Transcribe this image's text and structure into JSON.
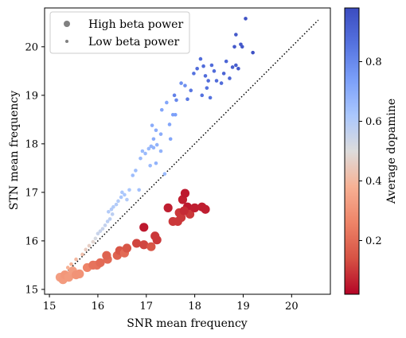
{
  "chart_data": {
    "type": "scatter",
    "xlabel": "SNR mean frequency",
    "ylabel": "STN mean frequency",
    "colorbar_label": "Average dopamine",
    "xlim": [
      14.9,
      20.8
    ],
    "ylim": [
      14.9,
      20.8
    ],
    "x_ticks": [
      "15",
      "16",
      "17",
      "18",
      "19",
      "20"
    ],
    "y_ticks": [
      "15",
      "16",
      "17",
      "18",
      "19",
      "20"
    ],
    "colorbar_ticks": [
      "0.2",
      "0.4",
      "0.6",
      "0.8"
    ],
    "colorbar_range": [
      0.02,
      0.98
    ],
    "colormap": "coolwarm",
    "legend": {
      "placement": "top-left",
      "entries": [
        "High beta power",
        "Low beta power"
      ]
    },
    "reference_line": {
      "style": "dotted",
      "from": [
        15.2,
        15.2
      ],
      "to": [
        20.55,
        20.55
      ]
    },
    "series": [
      {
        "name": "High beta power",
        "marker_size": "large",
        "points": [
          [
            15.22,
            15.25,
            0.33
          ],
          [
            15.28,
            15.2,
            0.32
          ],
          [
            15.32,
            15.3,
            0.31
          ],
          [
            15.4,
            15.25,
            0.32
          ],
          [
            15.48,
            15.38,
            0.33
          ],
          [
            15.55,
            15.3,
            0.3
          ],
          [
            15.62,
            15.32,
            0.3
          ],
          [
            15.78,
            15.45,
            0.26
          ],
          [
            15.9,
            15.5,
            0.22
          ],
          [
            15.98,
            15.5,
            0.22
          ],
          [
            16.05,
            15.55,
            0.2
          ],
          [
            16.2,
            15.62,
            0.2
          ],
          [
            16.18,
            15.7,
            0.18
          ],
          [
            16.4,
            15.7,
            0.18
          ],
          [
            16.45,
            15.8,
            0.15
          ],
          [
            16.55,
            15.75,
            0.2
          ],
          [
            16.6,
            15.85,
            0.15
          ],
          [
            16.8,
            15.95,
            0.12
          ],
          [
            16.95,
            15.92,
            0.12
          ],
          [
            17.1,
            15.88,
            0.15
          ],
          [
            17.22,
            16.02,
            0.1
          ],
          [
            17.18,
            16.1,
            0.1
          ],
          [
            16.95,
            16.28,
            0.05
          ],
          [
            17.45,
            16.68,
            0.06
          ],
          [
            17.55,
            16.4,
            0.1
          ],
          [
            17.65,
            16.4,
            0.1
          ],
          [
            17.68,
            16.58,
            0.1
          ],
          [
            17.75,
            16.85,
            0.06
          ],
          [
            17.8,
            16.98,
            0.05
          ],
          [
            17.72,
            16.48,
            0.1
          ],
          [
            17.85,
            16.7,
            0.05
          ],
          [
            17.9,
            16.55,
            0.1
          ],
          [
            18.0,
            16.68,
            0.06
          ],
          [
            18.15,
            16.7,
            0.06
          ],
          [
            18.22,
            16.65,
            0.06
          ],
          [
            17.78,
            16.62,
            0.08
          ]
        ]
      },
      {
        "name": "Low beta power",
        "marker_size": "small",
        "points": [
          [
            15.38,
            15.45,
            0.38
          ],
          [
            15.45,
            15.52,
            0.38
          ],
          [
            15.55,
            15.62,
            0.4
          ],
          [
            15.68,
            15.72,
            0.42
          ],
          [
            15.75,
            15.82,
            0.45
          ],
          [
            15.82,
            15.9,
            0.46
          ],
          [
            15.9,
            15.98,
            0.48
          ],
          [
            15.95,
            16.05,
            0.52
          ],
          [
            16.0,
            16.15,
            0.55
          ],
          [
            16.05,
            16.2,
            0.55
          ],
          [
            16.1,
            16.25,
            0.55
          ],
          [
            16.15,
            16.32,
            0.56
          ],
          [
            16.2,
            16.4,
            0.58
          ],
          [
            16.25,
            16.45,
            0.58
          ],
          [
            16.22,
            16.6,
            0.6
          ],
          [
            16.28,
            16.65,
            0.6
          ],
          [
            16.32,
            16.7,
            0.6
          ],
          [
            16.38,
            16.75,
            0.6
          ],
          [
            16.42,
            16.82,
            0.6
          ],
          [
            16.48,
            16.9,
            0.62
          ],
          [
            16.55,
            16.95,
            0.62
          ],
          [
            16.6,
            16.85,
            0.6
          ],
          [
            16.65,
            17.05,
            0.62
          ],
          [
            16.72,
            17.35,
            0.65
          ],
          [
            16.78,
            17.45,
            0.65
          ],
          [
            16.88,
            17.7,
            0.66
          ],
          [
            16.92,
            17.85,
            0.66
          ],
          [
            16.98,
            17.8,
            0.66
          ],
          [
            17.05,
            17.9,
            0.66
          ],
          [
            17.1,
            17.95,
            0.68
          ],
          [
            17.15,
            17.92,
            0.68
          ],
          [
            17.22,
            17.98,
            0.68
          ],
          [
            17.3,
            17.85,
            0.68
          ],
          [
            17.08,
            17.55,
            0.66
          ],
          [
            17.2,
            17.6,
            0.68
          ],
          [
            17.15,
            18.1,
            0.7
          ],
          [
            17.2,
            18.28,
            0.7
          ],
          [
            17.12,
            18.38,
            0.7
          ],
          [
            17.3,
            18.2,
            0.7
          ],
          [
            17.32,
            18.7,
            0.72
          ],
          [
            17.42,
            18.85,
            0.72
          ],
          [
            17.48,
            18.4,
            0.72
          ],
          [
            17.5,
            18.1,
            0.72
          ],
          [
            17.55,
            18.6,
            0.74
          ],
          [
            17.58,
            19.0,
            0.82
          ],
          [
            17.62,
            18.9,
            0.8
          ],
          [
            17.72,
            19.25,
            0.78
          ],
          [
            17.8,
            19.2,
            0.78
          ],
          [
            17.85,
            18.92,
            0.84
          ],
          [
            17.92,
            19.1,
            0.85
          ],
          [
            17.98,
            19.45,
            0.86
          ],
          [
            18.05,
            19.55,
            0.88
          ],
          [
            18.12,
            19.75,
            0.88
          ],
          [
            18.18,
            19.6,
            0.88
          ],
          [
            18.22,
            19.4,
            0.88
          ],
          [
            18.28,
            19.3,
            0.88
          ],
          [
            18.35,
            19.62,
            0.88
          ],
          [
            18.15,
            19.0,
            0.86
          ],
          [
            18.25,
            19.15,
            0.86
          ],
          [
            18.32,
            18.95,
            0.86
          ],
          [
            18.45,
            19.3,
            0.88
          ],
          [
            18.55,
            19.25,
            0.88
          ],
          [
            18.65,
            19.7,
            0.9
          ],
          [
            18.78,
            19.58,
            0.92
          ],
          [
            18.85,
            19.62,
            0.92
          ],
          [
            18.9,
            19.55,
            0.94
          ],
          [
            18.82,
            20.0,
            0.94
          ],
          [
            18.95,
            20.05,
            0.94
          ],
          [
            18.85,
            20.25,
            0.94
          ],
          [
            19.05,
            20.58,
            0.96
          ],
          [
            19.2,
            19.88,
            0.96
          ],
          [
            18.98,
            20.0,
            0.94
          ],
          [
            18.72,
            19.35,
            0.9
          ],
          [
            18.6,
            19.45,
            0.9
          ],
          [
            18.4,
            19.5,
            0.88
          ],
          [
            17.6,
            18.6,
            0.74
          ],
          [
            17.38,
            17.38,
            0.66
          ],
          [
            16.85,
            17.05,
            0.64
          ],
          [
            16.5,
            17.0,
            0.62
          ],
          [
            16.3,
            16.55,
            0.58
          ]
        ]
      }
    ]
  }
}
